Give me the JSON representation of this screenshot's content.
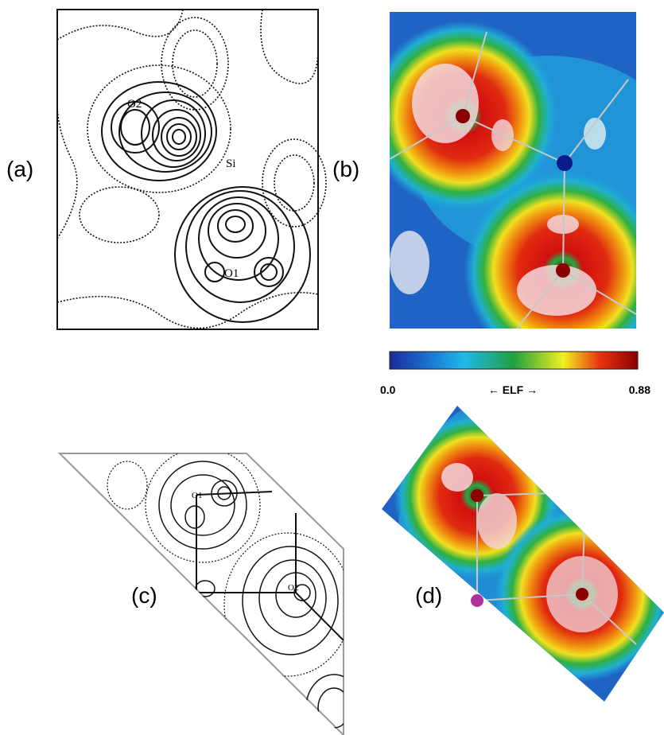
{
  "panels": {
    "a": {
      "label": "(a)",
      "atoms": [
        "O2",
        "Si",
        "O1"
      ]
    },
    "b": {
      "label": "(b)"
    },
    "c": {
      "label": "(c)",
      "atoms": [
        "O1",
        "O2"
      ]
    },
    "d": {
      "label": "(d)"
    }
  },
  "colorbar": {
    "min_label": "0.0",
    "title": "← ELF →",
    "max_label": "0.88"
  }
}
